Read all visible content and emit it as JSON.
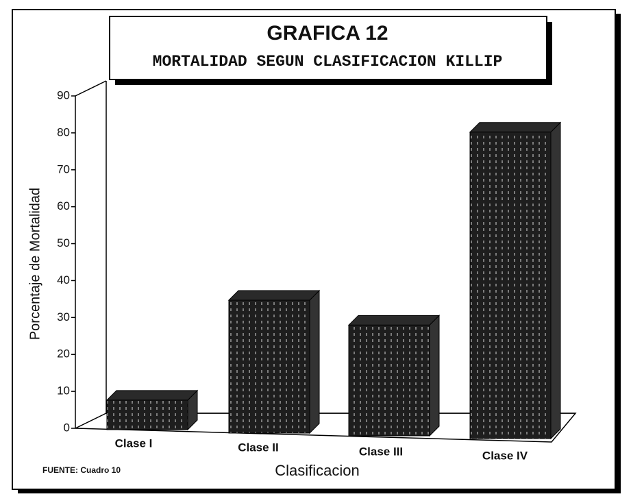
{
  "chart_data": {
    "type": "bar3d",
    "title": "GRAFICA 12",
    "subtitle": "MORTALIDAD SEGUN CLASIFICACION KILLIP",
    "y_label": "Porcentaje de Mortalidad",
    "x_label": "Clasificacion",
    "note": "FUENTE: Cuadro 10",
    "categories": [
      "Clase I",
      "Clase II",
      "Clase III",
      "Clase IV"
    ],
    "values": [
      8,
      36,
      30,
      83
    ],
    "color": "#1e1e1e",
    "ylim": [
      0,
      90
    ],
    "yticks": [
      0,
      10,
      20,
      30,
      40,
      50,
      60,
      70,
      80,
      90
    ]
  }
}
